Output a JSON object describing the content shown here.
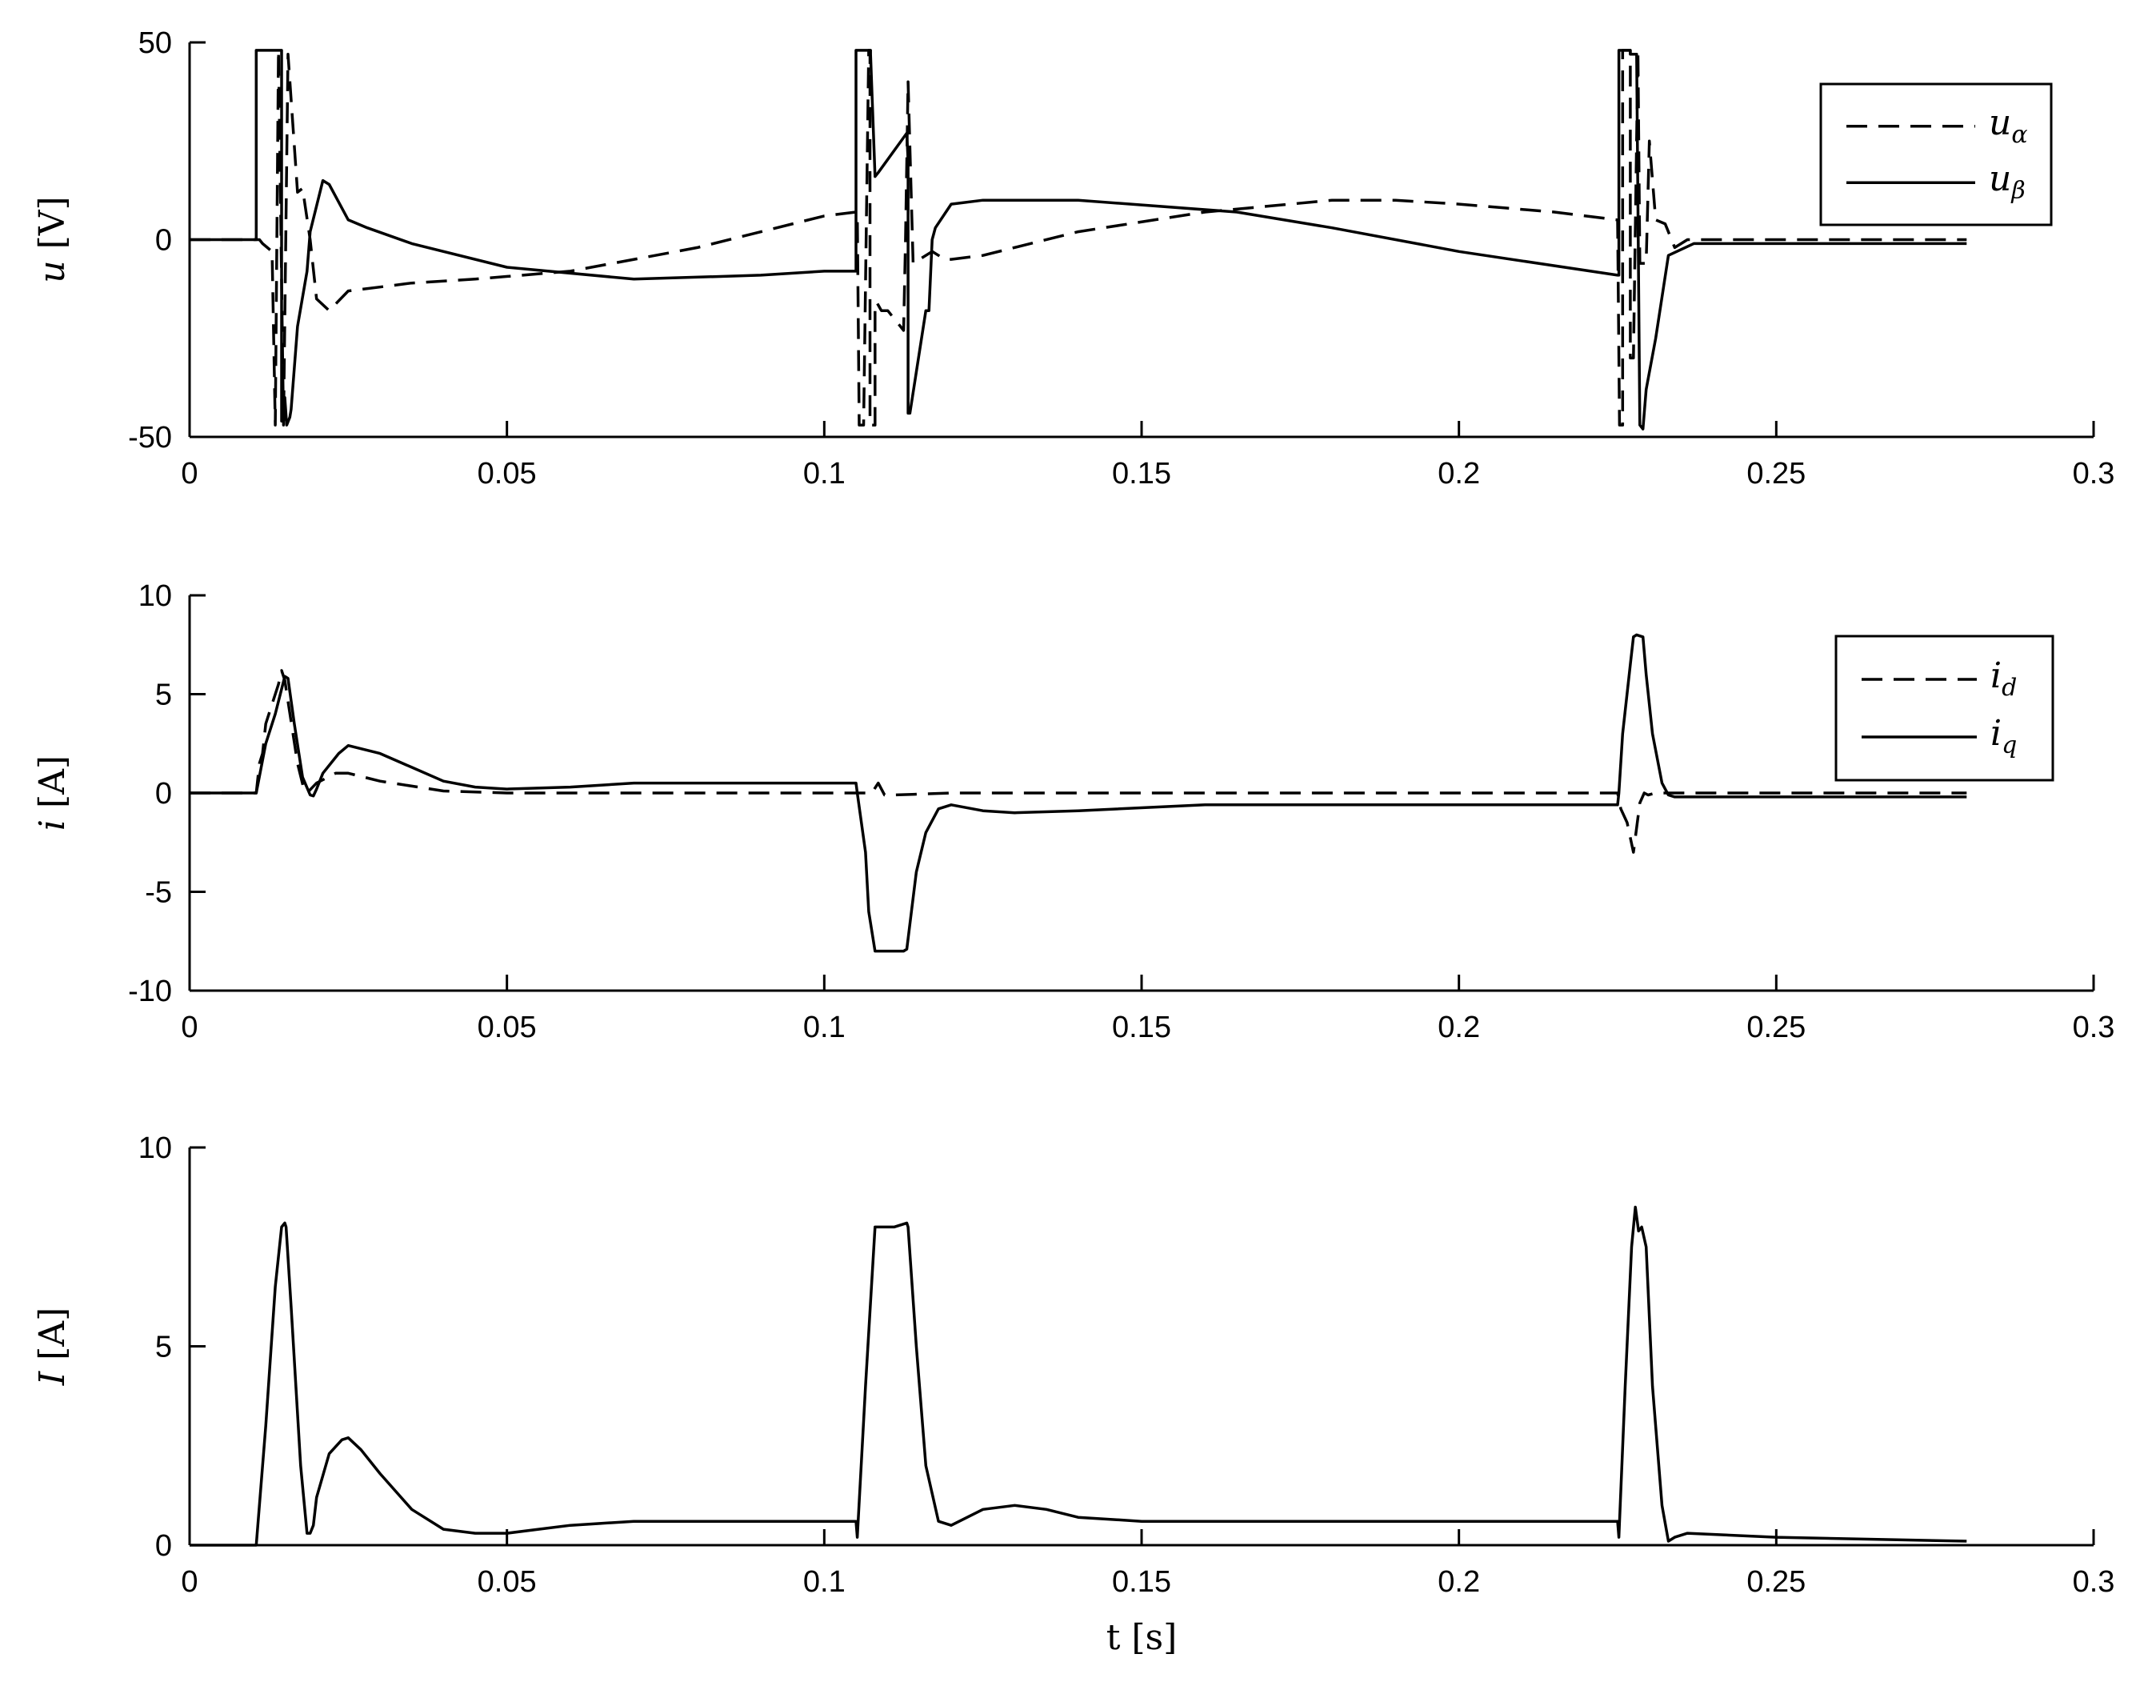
{
  "chart_data": [
    {
      "type": "line",
      "title": "",
      "xlabel": "",
      "ylabel": {
        "var": "u",
        "unit": "[V]"
      },
      "xlim": [
        0,
        0.3
      ],
      "ylim": [
        -50,
        50
      ],
      "xticks": [
        "0",
        "0.05",
        "0.1",
        "0.15",
        "0.2",
        "0.25",
        "0.3"
      ],
      "yticks": [
        "-50",
        "0",
        "50"
      ],
      "grid": false,
      "legend": {
        "placement": "top-right",
        "entries": [
          {
            "symbol": "u",
            "sub": "α",
            "style": "dashed"
          },
          {
            "symbol": "u",
            "sub": "β",
            "style": "solid"
          }
        ]
      },
      "series": [
        {
          "name": "u_α",
          "style": "dashed",
          "x": [
            0,
            0.011,
            0.0115,
            0.013,
            0.0135,
            0.0135,
            0.014,
            0.014,
            0.0148,
            0.0148,
            0.0155,
            0.0155,
            0.017,
            0.0178,
            0.019,
            0.02,
            0.022,
            0.025,
            0.03,
            0.035,
            0.045,
            0.06,
            0.08,
            0.1,
            0.105,
            0.1052,
            0.1055,
            0.1062,
            0.107,
            0.1072,
            0.1072,
            0.108,
            0.108,
            0.1083,
            0.109,
            0.11,
            0.1125,
            0.1128,
            0.1132,
            0.114,
            0.117,
            0.119,
            0.12,
            0.125,
            0.14,
            0.16,
            0.18,
            0.19,
            0.2,
            0.215,
            0.225,
            0.2253,
            0.2258,
            0.2258,
            0.227,
            0.227,
            0.2275,
            0.2282,
            0.2285,
            0.2295,
            0.23,
            0.231,
            0.2325,
            0.234,
            0.236,
            0.25,
            0.265,
            0.28
          ],
          "y": [
            0,
            0,
            -1,
            -3,
            -47,
            -47,
            48,
            48,
            -47,
            -47,
            47,
            47,
            12,
            13,
            0,
            -15,
            -18,
            -13,
            -12,
            -11,
            -10,
            -8,
            -2,
            6,
            7,
            7,
            -47,
            -47,
            48,
            48,
            -47,
            -47,
            -16,
            -16,
            -18,
            -18,
            -23,
            0,
            40,
            -6,
            -3,
            -5,
            -5,
            -4,
            2,
            7,
            10,
            10,
            9,
            7,
            5,
            -47,
            -47,
            48,
            48,
            -30,
            -30,
            48,
            -6,
            -6,
            25,
            5,
            4,
            -2,
            0,
            0,
            0,
            0
          ]
        },
        {
          "name": "u_β",
          "style": "solid",
          "x": [
            0,
            0.0105,
            0.0105,
            0.0145,
            0.0145,
            0.0148,
            0.015,
            0.0153,
            0.0158,
            0.016,
            0.017,
            0.0185,
            0.019,
            0.021,
            0.022,
            0.025,
            0.028,
            0.035,
            0.05,
            0.07,
            0.09,
            0.1,
            0.105,
            0.105,
            0.1073,
            0.1073,
            0.108,
            0.1085,
            0.113,
            0.1132,
            0.1132,
            0.1135,
            0.116,
            0.1165,
            0.117,
            0.1175,
            0.12,
            0.125,
            0.14,
            0.165,
            0.18,
            0.2,
            0.225,
            0.2252,
            0.2252,
            0.227,
            0.227,
            0.228,
            0.2285,
            0.2285,
            0.229,
            0.2295,
            0.231,
            0.233,
            0.237,
            0.25,
            0.28
          ],
          "y": [
            0,
            0,
            48,
            48,
            -46,
            -46,
            -40,
            -47,
            -45,
            -43,
            -22,
            -8,
            2,
            15,
            14,
            5,
            3,
            -1,
            -7,
            -10,
            -9,
            -8,
            -8,
            48,
            48,
            47,
            16,
            17,
            27,
            20,
            -44,
            -44,
            -18,
            -18,
            0,
            3,
            9,
            10,
            10,
            7,
            3,
            -3,
            -9,
            -9,
            48,
            48,
            47,
            47,
            -47,
            -47,
            -48,
            -38,
            -25,
            -4,
            -1,
            -1,
            -1
          ]
        }
      ]
    },
    {
      "type": "line",
      "title": "",
      "xlabel": "",
      "ylabel": {
        "var": "i",
        "unit": "[A]"
      },
      "xlim": [
        0,
        0.3
      ],
      "ylim": [
        -10,
        10
      ],
      "xticks": [
        "0",
        "0.05",
        "0.1",
        "0.15",
        "0.2",
        "0.25",
        "0.3"
      ],
      "yticks": [
        "-10",
        "-5",
        "0",
        "5",
        "10"
      ],
      "grid": false,
      "legend": {
        "placement": "top-right",
        "entries": [
          {
            "symbol": "i",
            "sub": "d",
            "style": "dashed"
          },
          {
            "symbol": "i",
            "sub": "q",
            "style": "solid"
          }
        ]
      },
      "series": [
        {
          "name": "i_d",
          "style": "dashed",
          "x": [
            0,
            0.0105,
            0.011,
            0.0115,
            0.012,
            0.013,
            0.014,
            0.0145,
            0.015,
            0.017,
            0.018,
            0.0185,
            0.02,
            0.023,
            0.025,
            0.03,
            0.04,
            0.05,
            0.1,
            0.105,
            0.1075,
            0.1085,
            0.1095,
            0.111,
            0.12,
            0.2,
            0.225,
            0.2255,
            0.2265,
            0.2275,
            0.2285,
            0.2292,
            0.2298,
            0.231,
            0.25,
            0.28
          ],
          "y": [
            0,
            0,
            1.5,
            2,
            3.5,
            4.5,
            5.5,
            6.2,
            5.7,
            1.5,
            0.2,
            0,
            0.5,
            1,
            1,
            0.6,
            0.1,
            0,
            0,
            0,
            0,
            0.5,
            -0.1,
            -0.1,
            0,
            0,
            0,
            -0.8,
            -1.5,
            -3,
            -0.5,
            0,
            -0.1,
            0,
            0,
            0
          ]
        },
        {
          "name": "i_q",
          "style": "solid",
          "x": [
            0,
            0.0105,
            0.012,
            0.0135,
            0.015,
            0.0155,
            0.0165,
            0.0178,
            0.019,
            0.0195,
            0.02,
            0.021,
            0.0235,
            0.025,
            0.03,
            0.035,
            0.04,
            0.045,
            0.05,
            0.06,
            0.07,
            0.08,
            0.1,
            0.105,
            0.1052,
            0.1065,
            0.107,
            0.108,
            0.109,
            0.111,
            0.1125,
            0.113,
            0.1145,
            0.116,
            0.118,
            0.12,
            0.125,
            0.13,
            0.14,
            0.16,
            0.2,
            0.225,
            0.2252,
            0.2258,
            0.227,
            0.2275,
            0.228,
            0.229,
            0.2295,
            0.2305,
            0.232,
            0.233,
            0.234,
            0.236,
            0.25,
            0.28
          ],
          "y": [
            0,
            0,
            2.5,
            4,
            5.9,
            5.8,
            3.5,
            0.8,
            -0.1,
            -0.15,
            0.2,
            1,
            2,
            2.4,
            2,
            1.3,
            0.6,
            0.3,
            0.2,
            0.3,
            0.5,
            0.5,
            0.5,
            0.5,
            0,
            -3,
            -6,
            -8,
            -8,
            -8,
            -8,
            -7.9,
            -4,
            -2,
            -0.8,
            -0.6,
            -0.9,
            -1,
            -0.9,
            -0.6,
            -0.6,
            -0.6,
            0,
            3,
            6.5,
            7.9,
            8,
            7.9,
            6,
            3,
            0.5,
            -0.1,
            -0.2,
            -0.2,
            -0.2,
            -0.2
          ]
        }
      ]
    },
    {
      "type": "line",
      "title": "",
      "xlabel": "t [s]",
      "ylabel": {
        "var": "I",
        "unit": "[A]"
      },
      "xlim": [
        0,
        0.3
      ],
      "ylim": [
        0,
        10
      ],
      "xticks": [
        "0",
        "0.05",
        "0.1",
        "0.15",
        "0.2",
        "0.25",
        "0.3"
      ],
      "yticks": [
        "0",
        "5",
        "10"
      ],
      "grid": false,
      "series": [
        {
          "name": "I",
          "style": "solid",
          "x": [
            0,
            0.0105,
            0.012,
            0.0135,
            0.0145,
            0.015,
            0.0152,
            0.016,
            0.0175,
            0.0185,
            0.019,
            0.0195,
            0.02,
            0.022,
            0.024,
            0.025,
            0.027,
            0.03,
            0.035,
            0.04,
            0.045,
            0.05,
            0.055,
            0.06,
            0.07,
            0.08,
            0.1,
            0.105,
            0.1052,
            0.1065,
            0.108,
            0.111,
            0.113,
            0.1132,
            0.1145,
            0.116,
            0.118,
            0.12,
            0.125,
            0.13,
            0.135,
            0.14,
            0.15,
            0.2,
            0.225,
            0.2252,
            0.2262,
            0.2272,
            0.2278,
            0.2283,
            0.2288,
            0.2295,
            0.2305,
            0.232,
            0.233,
            0.234,
            0.236,
            0.25,
            0.28
          ],
          "y": [
            0,
            0,
            3,
            6.5,
            8,
            8.1,
            8,
            6,
            2,
            0.3,
            0.3,
            0.5,
            1.2,
            2.3,
            2.65,
            2.7,
            2.4,
            1.8,
            0.9,
            0.4,
            0.3,
            0.3,
            0.4,
            0.5,
            0.6,
            0.6,
            0.6,
            0.6,
            0.2,
            4,
            8,
            8,
            8.1,
            8,
            5,
            2,
            0.6,
            0.5,
            0.9,
            1,
            0.9,
            0.7,
            0.6,
            0.6,
            0.6,
            0.2,
            4,
            7.5,
            8.5,
            7.9,
            8,
            7.5,
            4,
            1,
            0.1,
            0.2,
            0.3,
            0.2,
            0.1
          ]
        }
      ]
    }
  ]
}
